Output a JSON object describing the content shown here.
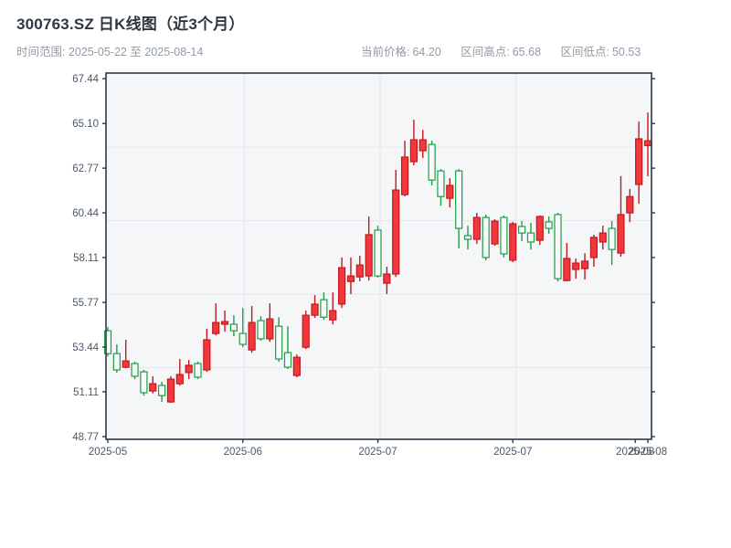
{
  "header": {
    "title": "300763.SZ 日K线图（近3个月）",
    "date_range": "时间范围: 2025-05-22 至 2025-08-14",
    "stats": [
      {
        "label": "当前价格:",
        "value": "64.20"
      },
      {
        "label": "区间高点:",
        "value": "65.68"
      },
      {
        "label": "区间低点:",
        "value": "50.53"
      }
    ]
  },
  "chart_data": {
    "type": "candlestick",
    "title": "300763.SZ 日K线图（近3个月）",
    "xlabel": "",
    "ylabel": "",
    "grid": true,
    "current_price": 64.2,
    "range_high": 65.68,
    "range_low": 50.53,
    "y_axis": {
      "price_at_top": 67.73,
      "price_at_bottom": 48.63,
      "ticks": [
        67.44,
        65.1,
        62.77,
        60.44,
        58.11,
        55.77,
        53.44,
        51.11,
        48.77
      ]
    },
    "x_ticks": [
      {
        "pos": 0,
        "label": "2025-05"
      },
      {
        "pos": 15,
        "label": "2025-06"
      },
      {
        "pos": 30,
        "label": "2025-07"
      },
      {
        "pos": 45,
        "label": "2025-07"
      },
      {
        "pos": 58.6,
        "label": "2025-08"
      },
      {
        "pos": 60,
        "label": "2025-08"
      }
    ],
    "colors": {
      "up_fill": "#f1383d",
      "up_stroke": "#c2191f",
      "down_fill": "#f7f9fa",
      "down_stroke": "#1f9e44",
      "plot_bg": "#f4f6f8",
      "grid": "#e7eaed",
      "spine": "#2c3848",
      "tick_label": "#4c5866"
    },
    "dates": [
      "2025-05-22",
      "2025-05-23",
      "2025-05-26",
      "2025-05-27",
      "2025-05-28",
      "2025-05-29",
      "2025-05-30",
      "2025-06-02",
      "2025-06-03",
      "2025-06-04",
      "2025-06-05",
      "2025-06-06",
      "2025-06-09",
      "2025-06-10",
      "2025-06-11",
      "2025-06-12",
      "2025-06-13",
      "2025-06-16",
      "2025-06-17",
      "2025-06-18",
      "2025-06-19",
      "2025-06-20",
      "2025-06-23",
      "2025-06-24",
      "2025-06-25",
      "2025-06-26",
      "2025-06-27",
      "2025-06-30",
      "2025-07-01",
      "2025-07-02",
      "2025-07-03",
      "2025-07-04",
      "2025-07-07",
      "2025-07-08",
      "2025-07-09",
      "2025-07-10",
      "2025-07-11",
      "2025-07-14",
      "2025-07-15",
      "2025-07-16",
      "2025-07-17",
      "2025-07-18",
      "2025-07-21",
      "2025-07-22",
      "2025-07-23",
      "2025-07-24",
      "2025-07-25",
      "2025-07-28",
      "2025-07-29",
      "2025-07-30",
      "2025-07-31",
      "2025-08-01",
      "2025-08-04",
      "2025-08-05",
      "2025-08-06",
      "2025-08-07",
      "2025-08-08",
      "2025-08-11",
      "2025-08-12",
      "2025-08-13",
      "2025-08-14"
    ],
    "ohlc": [
      [
        54.29,
        54.48,
        52.96,
        53.1
      ],
      [
        53.1,
        53.58,
        52.11,
        52.25
      ],
      [
        52.39,
        53.82,
        52.34,
        52.72
      ],
      [
        52.58,
        52.68,
        51.77,
        51.92
      ],
      [
        52.15,
        52.25,
        50.91,
        51.06
      ],
      [
        51.15,
        51.92,
        51.02,
        51.53
      ],
      [
        51.44,
        51.63,
        50.58,
        50.91
      ],
      [
        50.58,
        51.92,
        50.53,
        51.77
      ],
      [
        51.53,
        52.82,
        51.44,
        52.01
      ],
      [
        52.11,
        52.77,
        51.77,
        52.49
      ],
      [
        52.58,
        52.68,
        51.77,
        51.87
      ],
      [
        52.25,
        54.39,
        52.15,
        53.82
      ],
      [
        54.15,
        55.72,
        54.05,
        54.72
      ],
      [
        54.63,
        55.34,
        54.24,
        54.77
      ],
      [
        54.63,
        55.1,
        54.0,
        54.29
      ],
      [
        54.15,
        55.48,
        53.43,
        53.58
      ],
      [
        53.29,
        55.58,
        53.15,
        54.72
      ],
      [
        54.82,
        55.05,
        53.77,
        53.87
      ],
      [
        53.87,
        55.72,
        53.72,
        54.91
      ],
      [
        54.53,
        55.0,
        52.68,
        52.82
      ],
      [
        53.15,
        54.53,
        52.3,
        52.39
      ],
      [
        51.96,
        53.05,
        51.87,
        52.91
      ],
      [
        53.43,
        55.34,
        53.34,
        55.1
      ],
      [
        55.1,
        56.15,
        54.96,
        55.68
      ],
      [
        55.91,
        56.29,
        54.86,
        55.0
      ],
      [
        54.86,
        56.29,
        54.62,
        55.34
      ],
      [
        55.68,
        58.11,
        55.48,
        57.58
      ],
      [
        56.86,
        58.11,
        56.2,
        57.15
      ],
      [
        57.1,
        58.2,
        56.87,
        57.72
      ],
      [
        57.15,
        60.25,
        56.91,
        59.3
      ],
      [
        59.54,
        59.77,
        57.06,
        57.15
      ],
      [
        56.77,
        57.63,
        56.2,
        57.25
      ],
      [
        57.25,
        62.68,
        57.1,
        61.63
      ],
      [
        61.39,
        64.2,
        61.3,
        63.35
      ],
      [
        63.11,
        65.3,
        62.92,
        64.25
      ],
      [
        63.68,
        64.77,
        63.3,
        64.25
      ],
      [
        64.01,
        64.2,
        61.87,
        62.15
      ],
      [
        62.63,
        62.72,
        60.82,
        61.29
      ],
      [
        61.2,
        62.25,
        60.73,
        61.87
      ],
      [
        62.63,
        62.72,
        58.58,
        59.63
      ],
      [
        59.25,
        59.77,
        58.53,
        59.06
      ],
      [
        59.06,
        60.44,
        58.82,
        60.2
      ],
      [
        60.2,
        60.35,
        57.97,
        58.11
      ],
      [
        58.82,
        60.11,
        58.72,
        60.01
      ],
      [
        60.2,
        60.3,
        58.11,
        58.3
      ],
      [
        57.97,
        59.97,
        57.87,
        59.87
      ],
      [
        59.73,
        60.01,
        58.96,
        59.39
      ],
      [
        59.39,
        59.92,
        58.53,
        58.92
      ],
      [
        59.01,
        60.3,
        58.77,
        60.25
      ],
      [
        59.97,
        60.25,
        59.35,
        59.63
      ],
      [
        60.35,
        60.44,
        56.87,
        57.01
      ],
      [
        56.91,
        58.87,
        56.87,
        58.06
      ],
      [
        57.49,
        58.06,
        57.01,
        57.82
      ],
      [
        57.53,
        58.34,
        56.96,
        57.92
      ],
      [
        58.11,
        59.3,
        57.63,
        59.16
      ],
      [
        58.92,
        59.77,
        58.53,
        59.39
      ],
      [
        59.63,
        60.01,
        57.72,
        58.53
      ],
      [
        58.34,
        62.36,
        58.15,
        60.35
      ],
      [
        60.44,
        61.68,
        59.96,
        61.29
      ],
      [
        61.92,
        65.2,
        60.92,
        64.3
      ],
      [
        63.95,
        65.68,
        62.35,
        64.2
      ]
    ]
  }
}
